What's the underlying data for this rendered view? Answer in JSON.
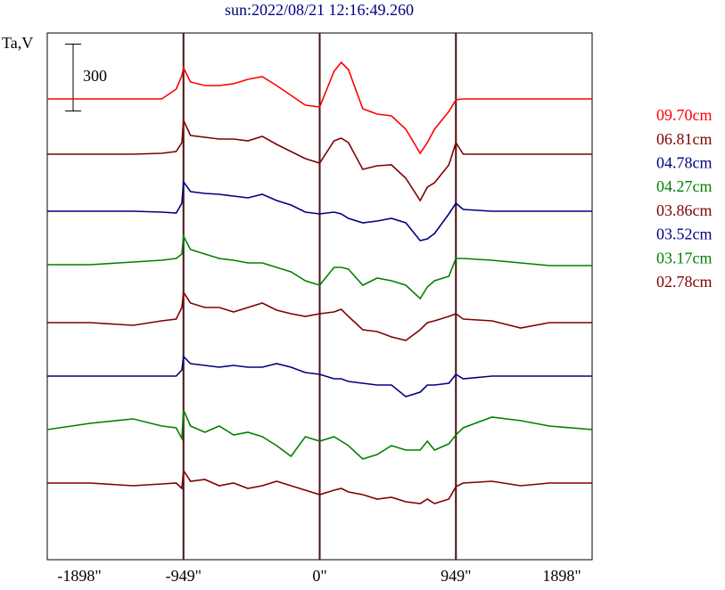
{
  "chart_data": {
    "type": "line",
    "title": "sun:2022/08/21 12:16:49.260",
    "ylabel": "Ta,V",
    "scale_bar": 300,
    "legend": "right",
    "xlim": [
      -1898,
      1898
    ],
    "xticks": [
      {
        "value": -1898,
        "label": "-1898\""
      },
      {
        "value": -949,
        "label": "-949\""
      },
      {
        "value": 0,
        "label": "0\""
      },
      {
        "value": 949,
        "label": "949\""
      },
      {
        "value": 1898,
        "label": "1898\""
      }
    ],
    "ylim": [
      0,
      2364
    ],
    "x": [
      -1898,
      -1600,
      -1300,
      -1100,
      -1000,
      -960,
      -949,
      -900,
      -800,
      -700,
      -600,
      -500,
      -400,
      -300,
      -200,
      -100,
      0,
      100,
      150,
      200,
      300,
      400,
      500,
      600,
      700,
      750,
      800,
      900,
      949,
      1000,
      1200,
      1400,
      1600,
      1898
    ],
    "series": [
      {
        "name": "09.70cm",
        "color": "#ff0000",
        "values": [
          2068,
          2068,
          2068,
          2068,
          2112,
          2172,
          2208,
          2144,
          2128,
          2128,
          2136,
          2156,
          2168,
          2128,
          2084,
          2040,
          2032,
          2192,
          2232,
          2200,
          2024,
          2000,
          1992,
          1932,
          1824,
          1872,
          1932,
          2012,
          2064,
          2068,
          2068,
          2068,
          2068,
          2068
        ]
      },
      {
        "name": "06.81cm",
        "color": "#800000",
        "values": [
          1820,
          1820,
          1820,
          1824,
          1832,
          1872,
          1972,
          1904,
          1896,
          1888,
          1888,
          1880,
          1900,
          1864,
          1832,
          1800,
          1780,
          1880,
          1892,
          1872,
          1752,
          1768,
          1772,
          1712,
          1612,
          1672,
          1692,
          1772,
          1872,
          1820,
          1820,
          1820,
          1820,
          1820
        ]
      },
      {
        "name": "04.78cm",
        "color": "#000080",
        "values": [
          1564,
          1564,
          1564,
          1560,
          1556,
          1600,
          1696,
          1652,
          1644,
          1640,
          1632,
          1624,
          1640,
          1612,
          1592,
          1560,
          1552,
          1560,
          1552,
          1532,
          1512,
          1520,
          1532,
          1512,
          1432,
          1440,
          1464,
          1552,
          1600,
          1572,
          1564,
          1564,
          1564,
          1564
        ]
      },
      {
        "name": "04.27cm",
        "color": "#008000",
        "values": [
          1324,
          1324,
          1336,
          1344,
          1352,
          1372,
          1452,
          1392,
          1372,
          1352,
          1344,
          1332,
          1332,
          1312,
          1292,
          1252,
          1232,
          1312,
          1312,
          1304,
          1232,
          1264,
          1252,
          1232,
          1172,
          1224,
          1252,
          1272,
          1352,
          1352,
          1344,
          1332,
          1320,
          1320
        ]
      },
      {
        "name": "03.86cm",
        "color": "#800000",
        "values": [
          1064,
          1064,
          1052,
          1072,
          1080,
          1132,
          1200,
          1152,
          1132,
          1132,
          1112,
          1132,
          1152,
          1120,
          1104,
          1092,
          1104,
          1112,
          1124,
          1092,
          1032,
          1024,
          1000,
          984,
          1032,
          1064,
          1072,
          1092,
          1104,
          1080,
          1072,
          1040,
          1064,
          1064
        ]
      },
      {
        "name": "03.52cm",
        "color": "#000080",
        "values": [
          824,
          824,
          824,
          824,
          824,
          852,
          912,
          880,
          872,
          864,
          872,
          864,
          864,
          880,
          864,
          840,
          832,
          812,
          812,
          800,
          792,
          784,
          784,
          732,
          752,
          784,
          784,
          792,
          832,
          812,
          824,
          824,
          824,
          824
        ]
      },
      {
        "name": "03.17cm",
        "color": "#008000",
        "values": [
          584,
          612,
          632,
          600,
          592,
          544,
          672,
          600,
          572,
          600,
          560,
          572,
          552,
          512,
          464,
          552,
          532,
          552,
          532,
          512,
          452,
          472,
          512,
          492,
          492,
          532,
          492,
          520,
          560,
          592,
          640,
          624,
          600,
          584
        ]
      },
      {
        "name": "02.78cm",
        "color": "#800000",
        "values": [
          344,
          344,
          332,
          340,
          344,
          320,
          400,
          352,
          360,
          332,
          344,
          320,
          332,
          352,
          332,
          312,
          292,
          312,
          320,
          304,
          292,
          272,
          280,
          260,
          252,
          272,
          252,
          272,
          328,
          344,
          352,
          332,
          344,
          344
        ]
      }
    ]
  }
}
